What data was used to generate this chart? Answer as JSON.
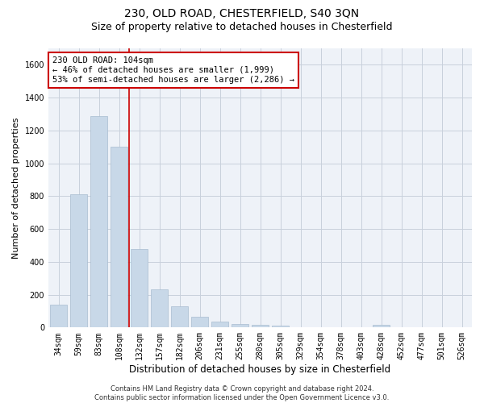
{
  "title": "230, OLD ROAD, CHESTERFIELD, S40 3QN",
  "subtitle": "Size of property relative to detached houses in Chesterfield",
  "xlabel": "Distribution of detached houses by size in Chesterfield",
  "ylabel": "Number of detached properties",
  "categories": [
    "34sqm",
    "59sqm",
    "83sqm",
    "108sqm",
    "132sqm",
    "157sqm",
    "182sqm",
    "206sqm",
    "231sqm",
    "255sqm",
    "280sqm",
    "305sqm",
    "329sqm",
    "354sqm",
    "378sqm",
    "403sqm",
    "428sqm",
    "452sqm",
    "477sqm",
    "501sqm",
    "526sqm"
  ],
  "values": [
    140,
    810,
    1290,
    1100,
    480,
    230,
    130,
    65,
    38,
    22,
    15,
    12,
    0,
    0,
    0,
    0,
    15,
    0,
    0,
    0,
    0
  ],
  "bar_color": "#c8d8e8",
  "bar_edge_color": "#a8bcd0",
  "red_line_x": 3.5,
  "annotation_line1": "230 OLD ROAD: 104sqm",
  "annotation_line2": "← 46% of detached houses are smaller (1,999)",
  "annotation_line3": "53% of semi-detached houses are larger (2,286) →",
  "annotation_box_color": "white",
  "annotation_box_edge_color": "#cc0000",
  "vline_color": "#cc0000",
  "ylim": [
    0,
    1700
  ],
  "yticks": [
    0,
    200,
    400,
    600,
    800,
    1000,
    1200,
    1400,
    1600
  ],
  "grid_color": "#c8d0dc",
  "background_color": "#eef2f8",
  "footer_line1": "Contains HM Land Registry data © Crown copyright and database right 2024.",
  "footer_line2": "Contains public sector information licensed under the Open Government Licence v3.0.",
  "title_fontsize": 10,
  "subtitle_fontsize": 9,
  "xlabel_fontsize": 8.5,
  "ylabel_fontsize": 8,
  "tick_fontsize": 7,
  "annotation_fontsize": 7.5,
  "footer_fontsize": 6
}
